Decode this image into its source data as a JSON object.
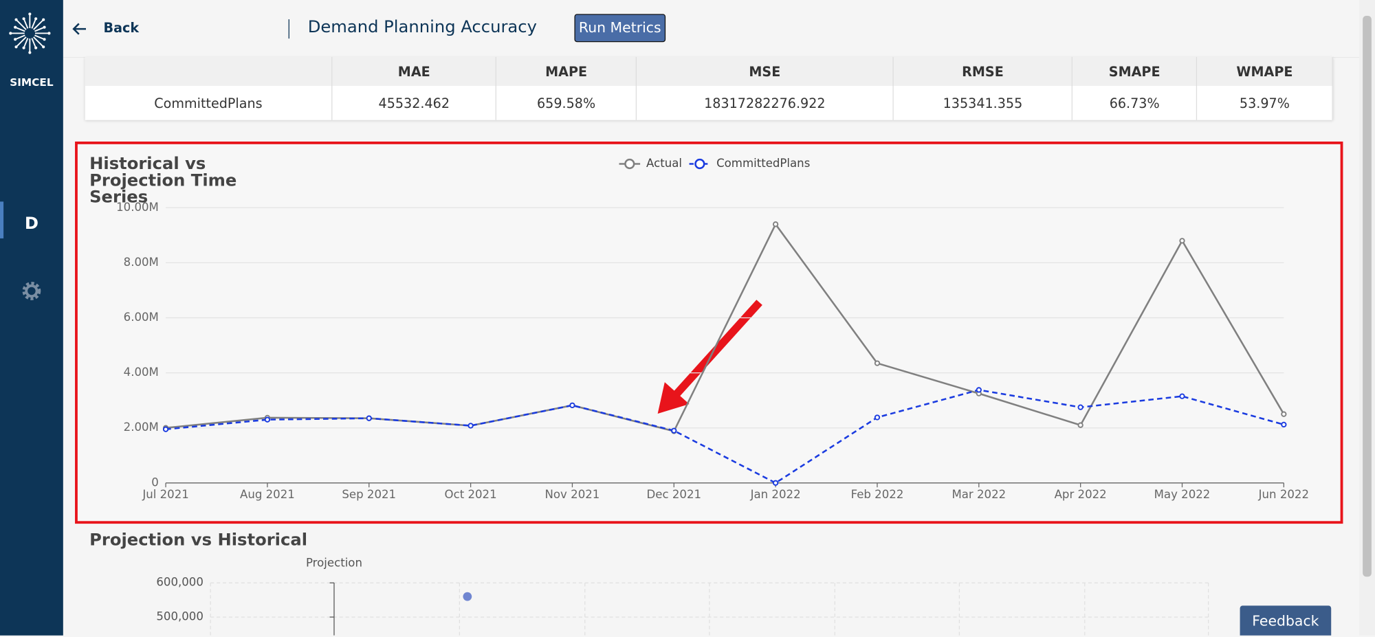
{
  "sidebar": {
    "logo": "SIMCEL",
    "item": "D"
  },
  "header": {
    "back": "Back",
    "title": "Demand Planning Accuracy",
    "button": "Run Metrics"
  },
  "table": {
    "columns": [
      "MAE",
      "MAPE",
      "MSE",
      "RMSE",
      "SMAPE",
      "WMAPE"
    ],
    "rows": [
      [
        "CommittedPlans",
        "45532.462",
        "659.58%",
        "18317282276.922",
        "135341.355",
        "66.73%",
        "53.97%"
      ]
    ]
  },
  "chart_data": [
    {
      "type": "line",
      "title": "Historical vs Projection Time Series",
      "categories": [
        "Jul 2021",
        "Aug 2021",
        "Sep 2021",
        "Oct 2021",
        "Nov 2021",
        "Dec 2021",
        "Jan 2022",
        "Feb 2022",
        "Mar 2022",
        "Apr 2022",
        "May 2022",
        "Jun 2022"
      ],
      "series": [
        {
          "name": "Actual",
          "color": "#808080",
          "dashed": false,
          "values": [
            2000000,
            2370000,
            2350000,
            2080000,
            2820000,
            1880000,
            9400000,
            4350000,
            3250000,
            2100000,
            8800000,
            2500000
          ]
        },
        {
          "name": "CommittedPlans",
          "color": "#1a3be0",
          "dashed": true,
          "values": [
            1950000,
            2300000,
            2350000,
            2080000,
            2820000,
            1900000,
            0,
            2380000,
            3380000,
            2750000,
            3150000,
            2120000
          ]
        }
      ],
      "ylim": [
        0,
        10000000
      ],
      "yticks": [
        0,
        {
          "value": 2000000,
          "label": "2.00M"
        },
        {
          "value": 4000000,
          "label": "4.00M"
        },
        {
          "value": 6000000,
          "label": "6.00M"
        },
        {
          "value": 8000000,
          "label": "8.00M"
        },
        {
          "value": 10000000,
          "label": "10.00M"
        }
      ],
      "grid": true
    },
    {
      "type": "scatter",
      "title": "Projection vs Historical",
      "y_label": "Projection",
      "series": [
        {
          "color": "#6f85d0",
          "values": [
            560000
          ]
        }
      ],
      "yticks": [
        {
          "value": 600000,
          "label": "600,000"
        },
        {
          "value": 500000,
          "label": "500,000"
        }
      ],
      "grid": true
    }
  ],
  "feedback": "Feedback"
}
